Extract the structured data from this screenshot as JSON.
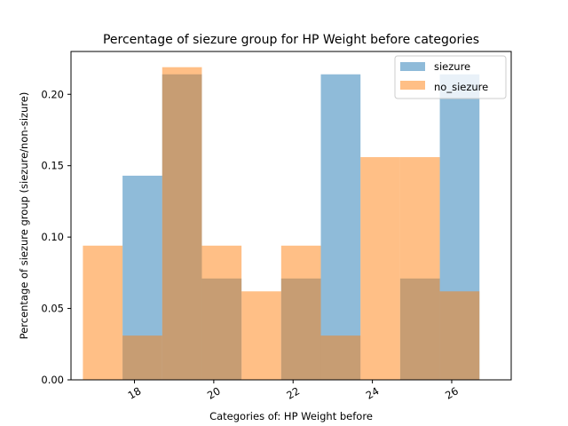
{
  "chart_data": {
    "type": "bar",
    "title": "Percentage of siezure group for HP Weight before categories",
    "xlabel": "Categories of: HP Weight before",
    "ylabel": "Percentage of siezure group (siezure/non-sizure)",
    "xlim": [
      16.4,
      27.5
    ],
    "ylim": [
      0.0,
      0.23
    ],
    "xticks": [
      "18",
      "20",
      "22",
      "24",
      "26"
    ],
    "xtick_values": [
      18,
      20,
      22,
      24,
      26
    ],
    "yticks": [
      "0.00",
      "0.05",
      "0.10",
      "0.15",
      "0.20"
    ],
    "ytick_values": [
      0.0,
      0.05,
      0.1,
      0.15,
      0.2
    ],
    "bin_edges": [
      16.7,
      17.7,
      18.7,
      19.7,
      20.7,
      21.7,
      22.7,
      23.7,
      24.7,
      25.7,
      26.7
    ],
    "series": [
      {
        "name": "siezure",
        "color": "#1f77b4",
        "values": [
          0.0,
          0.143,
          0.214,
          0.071,
          0.0,
          0.071,
          0.214,
          0.0,
          0.071,
          0.214
        ]
      },
      {
        "name": "no_siezure",
        "color": "#ff7f0e",
        "values": [
          0.094,
          0.031,
          0.219,
          0.094,
          0.062,
          0.094,
          0.031,
          0.156,
          0.156,
          0.062
        ]
      }
    ],
    "alpha": 0.5,
    "legend_position": "top-right",
    "grid": false
  }
}
